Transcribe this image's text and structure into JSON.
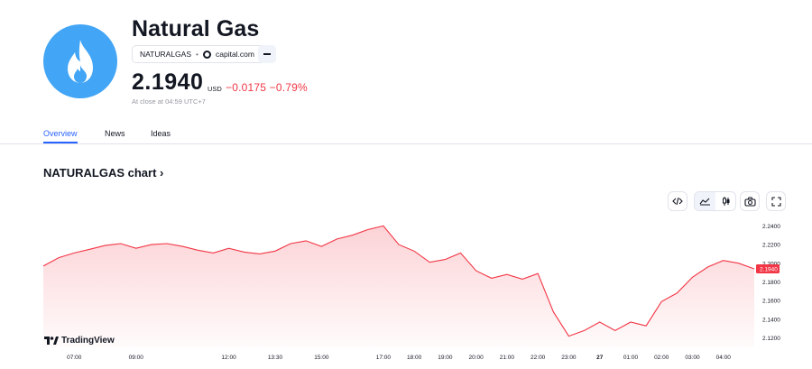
{
  "header": {
    "title": "Natural Gas",
    "symbol": "NATURALGAS",
    "separator": "•",
    "source": "capital.com",
    "price": "2.1940",
    "currency": "USD",
    "change": "−0.0175 −0.79%",
    "close_note": "At close at 04:59 UTC+7",
    "logo_icon": "flame-icon",
    "accent_color": "#42a5f5",
    "negative_color": "#f23645"
  },
  "tabs": [
    {
      "label": "Overview",
      "active": true
    },
    {
      "label": "News",
      "active": false
    },
    {
      "label": "Ideas",
      "active": false
    }
  ],
  "chart_section": {
    "heading": "NATURALGAS chart ›",
    "tools": [
      "embed-icon",
      "area-chart-icon",
      "candles-icon",
      "camera-icon",
      "fullscreen-icon"
    ],
    "brand": "TradingView"
  },
  "chart_data": {
    "type": "area",
    "color": "#f23645",
    "x": [
      "06:00",
      "06:30",
      "07:00",
      "07:30",
      "08:00",
      "08:30",
      "09:00",
      "09:30",
      "10:00",
      "10:30",
      "11:00",
      "11:30",
      "12:00",
      "12:30",
      "13:00",
      "13:30",
      "14:00",
      "14:30",
      "15:00",
      "15:30",
      "16:00",
      "16:30",
      "17:00",
      "17:30",
      "18:00",
      "18:30",
      "19:00",
      "19:30",
      "20:00",
      "20:30",
      "21:00",
      "21:30",
      "22:00",
      "22:30",
      "23:00",
      "23:30",
      "27",
      "00:30",
      "01:00",
      "01:30",
      "02:00",
      "02:30",
      "03:00",
      "03:30",
      "04:00",
      "04:30",
      "04:59"
    ],
    "values": [
      2.197,
      2.206,
      2.211,
      2.215,
      2.219,
      2.221,
      2.216,
      2.22,
      2.221,
      2.218,
      2.214,
      2.211,
      2.216,
      2.212,
      2.21,
      2.213,
      2.221,
      2.224,
      2.218,
      2.226,
      2.23,
      2.236,
      2.24,
      2.22,
      2.213,
      2.201,
      2.204,
      2.211,
      2.192,
      2.184,
      2.188,
      2.183,
      2.189,
      2.148,
      2.122,
      2.128,
      2.137,
      2.128,
      2.137,
      2.133,
      2.159,
      2.168,
      2.185,
      2.196,
      2.203,
      2.2,
      2.194
    ],
    "x_ticks": [
      "07:00",
      "09:00",
      "12:00",
      "13:30",
      "15:00",
      "17:00",
      "18:00",
      "19:00",
      "20:00",
      "21:00",
      "22:00",
      "23:00",
      "27",
      "01:00",
      "02:00",
      "03:00",
      "04:00"
    ],
    "y_ticks": [
      "2.2400",
      "2.2200",
      "2.2000",
      "2.1800",
      "2.1600",
      "2.1400",
      "2.1200"
    ],
    "last_label": "2.1940",
    "ylim": [
      2.11,
      2.25
    ],
    "grid": false
  }
}
